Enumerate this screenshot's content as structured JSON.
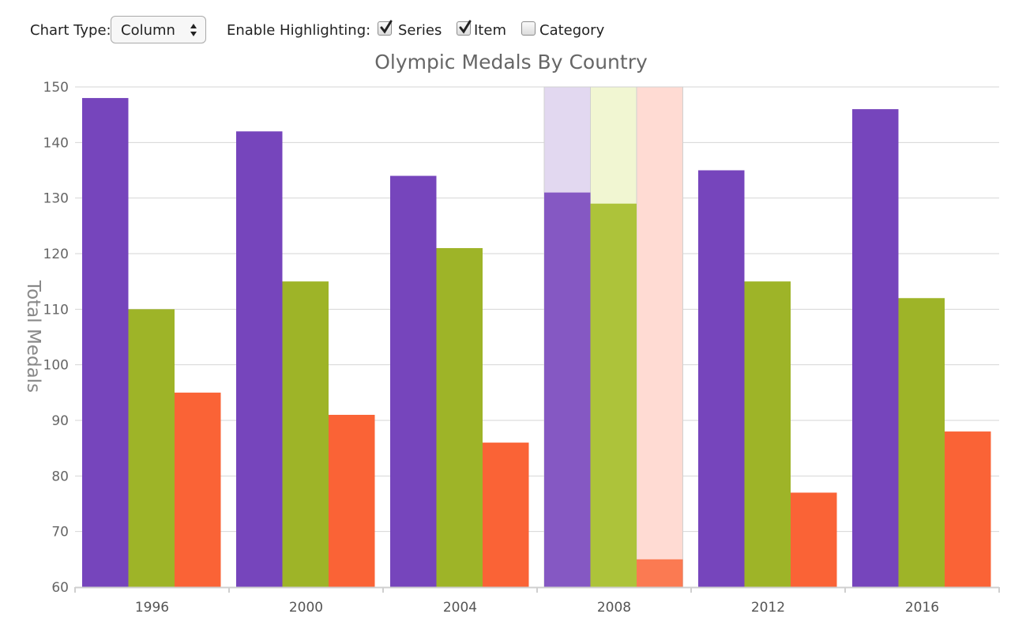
{
  "controls": {
    "chart_type_label": "Chart Type:",
    "chart_type_value": "Column",
    "highlight_label": "Enable Highlighting:",
    "checkboxes": [
      {
        "label": "Series",
        "checked": true
      },
      {
        "label": "Item",
        "checked": true
      },
      {
        "label": "Category",
        "checked": false
      }
    ]
  },
  "chart_data": {
    "type": "bar",
    "title": "Olympic Medals By Country",
    "xlabel": "",
    "ylabel": "Total Medals",
    "ylim": [
      60,
      150
    ],
    "yticks": [
      60,
      70,
      80,
      90,
      100,
      110,
      120,
      130,
      140,
      150
    ],
    "grid": true,
    "highlighted_category": "2008",
    "categories": [
      "1996",
      "2000",
      "2004",
      "2008",
      "2012",
      "2016"
    ],
    "series": [
      {
        "color": "#7645bc",
        "values": [
          148,
          142,
          134,
          131,
          135,
          146
        ]
      },
      {
        "color": "#9eb428",
        "values": [
          110,
          115,
          121,
          129,
          115,
          112
        ]
      },
      {
        "color": "#fa6336",
        "values": [
          95,
          91,
          86,
          65,
          77,
          88
        ]
      }
    ],
    "highlight_colors": [
      "#e2d8f0",
      "#f1f6d2",
      "#ffdbd3"
    ],
    "highlight_bar_colors": [
      "#8558c3",
      "#adc33a",
      "#fb7a52"
    ]
  }
}
